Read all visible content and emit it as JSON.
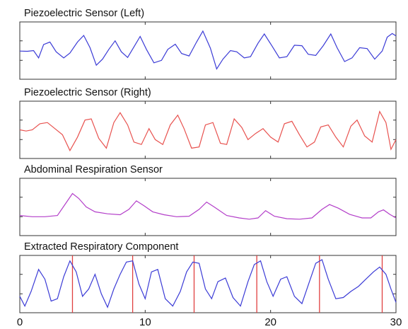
{
  "chart_data": {
    "type": "line",
    "x_range": [
      0,
      30
    ],
    "x_ticks": [
      0,
      10,
      20,
      30
    ],
    "x_tick_labels": [
      "0",
      "10",
      "20",
      "30"
    ],
    "grid": false,
    "panels": [
      {
        "title": "Piezoelectric Sensor (Left)",
        "color": "#3b3bd6",
        "y_range": [
          -1,
          1
        ],
        "series": [
          {
            "x": [
              0,
              0.6,
              1.1,
              1.5,
              1.9,
              2.4,
              2.9,
              3.5,
              4.0,
              4.6,
              5.1,
              5.6,
              6.1,
              6.6,
              7.1,
              7.6,
              8.1,
              8.6,
              9.1,
              9.6,
              10.1,
              10.7,
              11.3,
              11.8,
              12.4,
              12.9,
              13.5,
              14.1,
              14.6,
              15.2,
              15.7,
              16.2,
              16.8,
              17.3,
              17.9,
              18.4,
              19.0,
              19.5,
              20.1,
              20.7,
              21.3,
              21.9,
              22.5,
              23.0,
              23.6,
              24.2,
              24.8,
              25.3,
              25.9,
              26.5,
              27.1,
              27.7,
              28.3,
              28.9,
              29.3,
              29.7,
              30.0
            ],
            "y": [
              -0.02,
              -0.03,
              0.0,
              -0.3,
              0.25,
              0.35,
              -0.05,
              -0.3,
              -0.1,
              0.35,
              0.62,
              0.12,
              -0.6,
              -0.35,
              0.05,
              0.4,
              -0.05,
              -0.28,
              0.15,
              0.58,
              0.05,
              -0.5,
              -0.4,
              0.05,
              0.26,
              -0.12,
              -0.22,
              0.35,
              0.8,
              0.1,
              -0.75,
              -0.35,
              0.0,
              -0.05,
              -0.3,
              -0.25,
              0.3,
              0.68,
              0.2,
              -0.3,
              -0.25,
              0.22,
              0.2,
              -0.15,
              -0.2,
              0.2,
              0.68,
              0.12,
              -0.45,
              -0.3,
              0.12,
              0.08,
              -0.35,
              -0.02,
              0.55,
              0.7,
              0.6
            ]
          }
        ]
      },
      {
        "title": "Piezoelectric Sensor (Right)",
        "color": "#e8524f",
        "y_range": [
          -1,
          1
        ],
        "series": [
          {
            "x": [
              0,
              0.5,
              1.0,
              1.6,
              2.2,
              2.8,
              3.4,
              4.0,
              4.6,
              5.2,
              5.7,
              6.3,
              6.9,
              7.5,
              8.0,
              8.6,
              9.1,
              9.7,
              10.3,
              10.8,
              11.4,
              12.0,
              12.6,
              13.1,
              13.7,
              14.3,
              14.8,
              15.4,
              16.0,
              16.5,
              17.1,
              17.7,
              18.2,
              18.8,
              19.4,
              20.0,
              20.6,
              21.1,
              21.7,
              22.3,
              22.9,
              23.5,
              24.0,
              24.6,
              25.2,
              25.8,
              26.4,
              26.9,
              27.5,
              28.1,
              28.7,
              29.2,
              29.6,
              30.0
            ],
            "y": [
              0.0,
              -0.05,
              0.0,
              0.25,
              0.3,
              0.05,
              -0.2,
              -0.85,
              -0.3,
              0.4,
              0.45,
              -0.35,
              -0.75,
              0.3,
              0.7,
              0.2,
              -0.5,
              -0.6,
              0.05,
              -0.4,
              -0.6,
              0.2,
              0.6,
              0.05,
              -0.75,
              -0.7,
              0.2,
              0.3,
              -0.55,
              -0.6,
              0.45,
              0.1,
              -0.4,
              -0.15,
              0.05,
              -0.3,
              -0.5,
              0.25,
              0.35,
              -0.2,
              -0.7,
              -0.5,
              0.12,
              0.2,
              -0.3,
              -0.7,
              0.15,
              0.4,
              -0.25,
              -0.5,
              0.75,
              0.3,
              -0.8,
              -0.4
            ]
          }
        ]
      },
      {
        "title": "Abdominal Respiration Sensor",
        "color": "#b33ec9",
        "y_range": [
          -1,
          1
        ],
        "series": [
          {
            "x": [
              0,
              1.0,
              2.0,
              3.0,
              3.6,
              4.2,
              4.7,
              5.3,
              6.0,
              7.0,
              8.0,
              8.7,
              9.3,
              9.9,
              10.6,
              11.5,
              12.5,
              13.5,
              14.3,
              14.9,
              15.5,
              16.5,
              17.5,
              18.3,
              19.0,
              19.6,
              20.3,
              21.3,
              22.3,
              23.3,
              24.1,
              24.7,
              25.4,
              26.3,
              27.3,
              28.0,
              28.6,
              29.0,
              29.5,
              30.0
            ],
            "y": [
              -0.35,
              -0.4,
              -0.4,
              -0.35,
              0.1,
              0.55,
              0.35,
              0.0,
              -0.2,
              -0.28,
              -0.32,
              -0.1,
              0.25,
              0.05,
              -0.2,
              -0.32,
              -0.4,
              -0.38,
              -0.1,
              0.2,
              0.0,
              -0.35,
              -0.45,
              -0.5,
              -0.45,
              -0.15,
              -0.38,
              -0.48,
              -0.5,
              -0.45,
              -0.1,
              0.1,
              -0.05,
              -0.3,
              -0.45,
              -0.45,
              -0.2,
              -0.12,
              -0.3,
              -0.45
            ]
          }
        ]
      },
      {
        "title": "Extracted Respiratory Component",
        "color": "#3b3bd6",
        "marker_color": "#e04040",
        "y_range": [
          -1,
          1
        ],
        "series": [
          {
            "x": [
              0,
              0.4,
              0.9,
              1.5,
              2.0,
              2.5,
              3.0,
              3.5,
              4.0,
              4.5,
              5.0,
              5.5,
              6.0,
              6.5,
              7.0,
              7.5,
              8.0,
              8.5,
              9.0,
              9.5,
              10.0,
              10.5,
              11.0,
              11.6,
              12.2,
              12.8,
              13.3,
              13.8,
              14.3,
              14.8,
              15.3,
              15.8,
              16.4,
              17.0,
              17.6,
              18.2,
              18.7,
              19.2,
              19.7,
              20.2,
              20.8,
              21.3,
              21.9,
              22.5,
              23.1,
              23.6,
              24.1,
              24.6,
              25.2,
              25.8,
              26.4,
              27.0,
              27.6,
              28.2,
              28.7,
              29.2,
              29.6,
              30.0
            ],
            "y": [
              -0.5,
              -0.9,
              -0.3,
              0.6,
              0.2,
              -0.7,
              -0.6,
              0.3,
              0.95,
              0.5,
              -0.5,
              -0.2,
              0.4,
              -0.4,
              -0.95,
              -0.2,
              0.4,
              0.9,
              0.95,
              0.0,
              -0.6,
              0.5,
              0.6,
              -0.6,
              -0.9,
              -0.3,
              0.5,
              0.9,
              0.85,
              -0.2,
              -0.6,
              0.1,
              0.25,
              -0.55,
              -0.9,
              0.1,
              0.8,
              0.95,
              0.1,
              -0.5,
              0.2,
              0.3,
              -0.5,
              -0.8,
              0.1,
              0.85,
              1.0,
              0.2,
              -0.6,
              -0.55,
              -0.3,
              -0.1,
              0.2,
              0.5,
              0.7,
              0.4,
              -0.2,
              -0.75
            ]
          }
        ],
        "markers_x": [
          4.2,
          9.0,
          13.9,
          18.9,
          23.9,
          28.9
        ]
      }
    ]
  }
}
